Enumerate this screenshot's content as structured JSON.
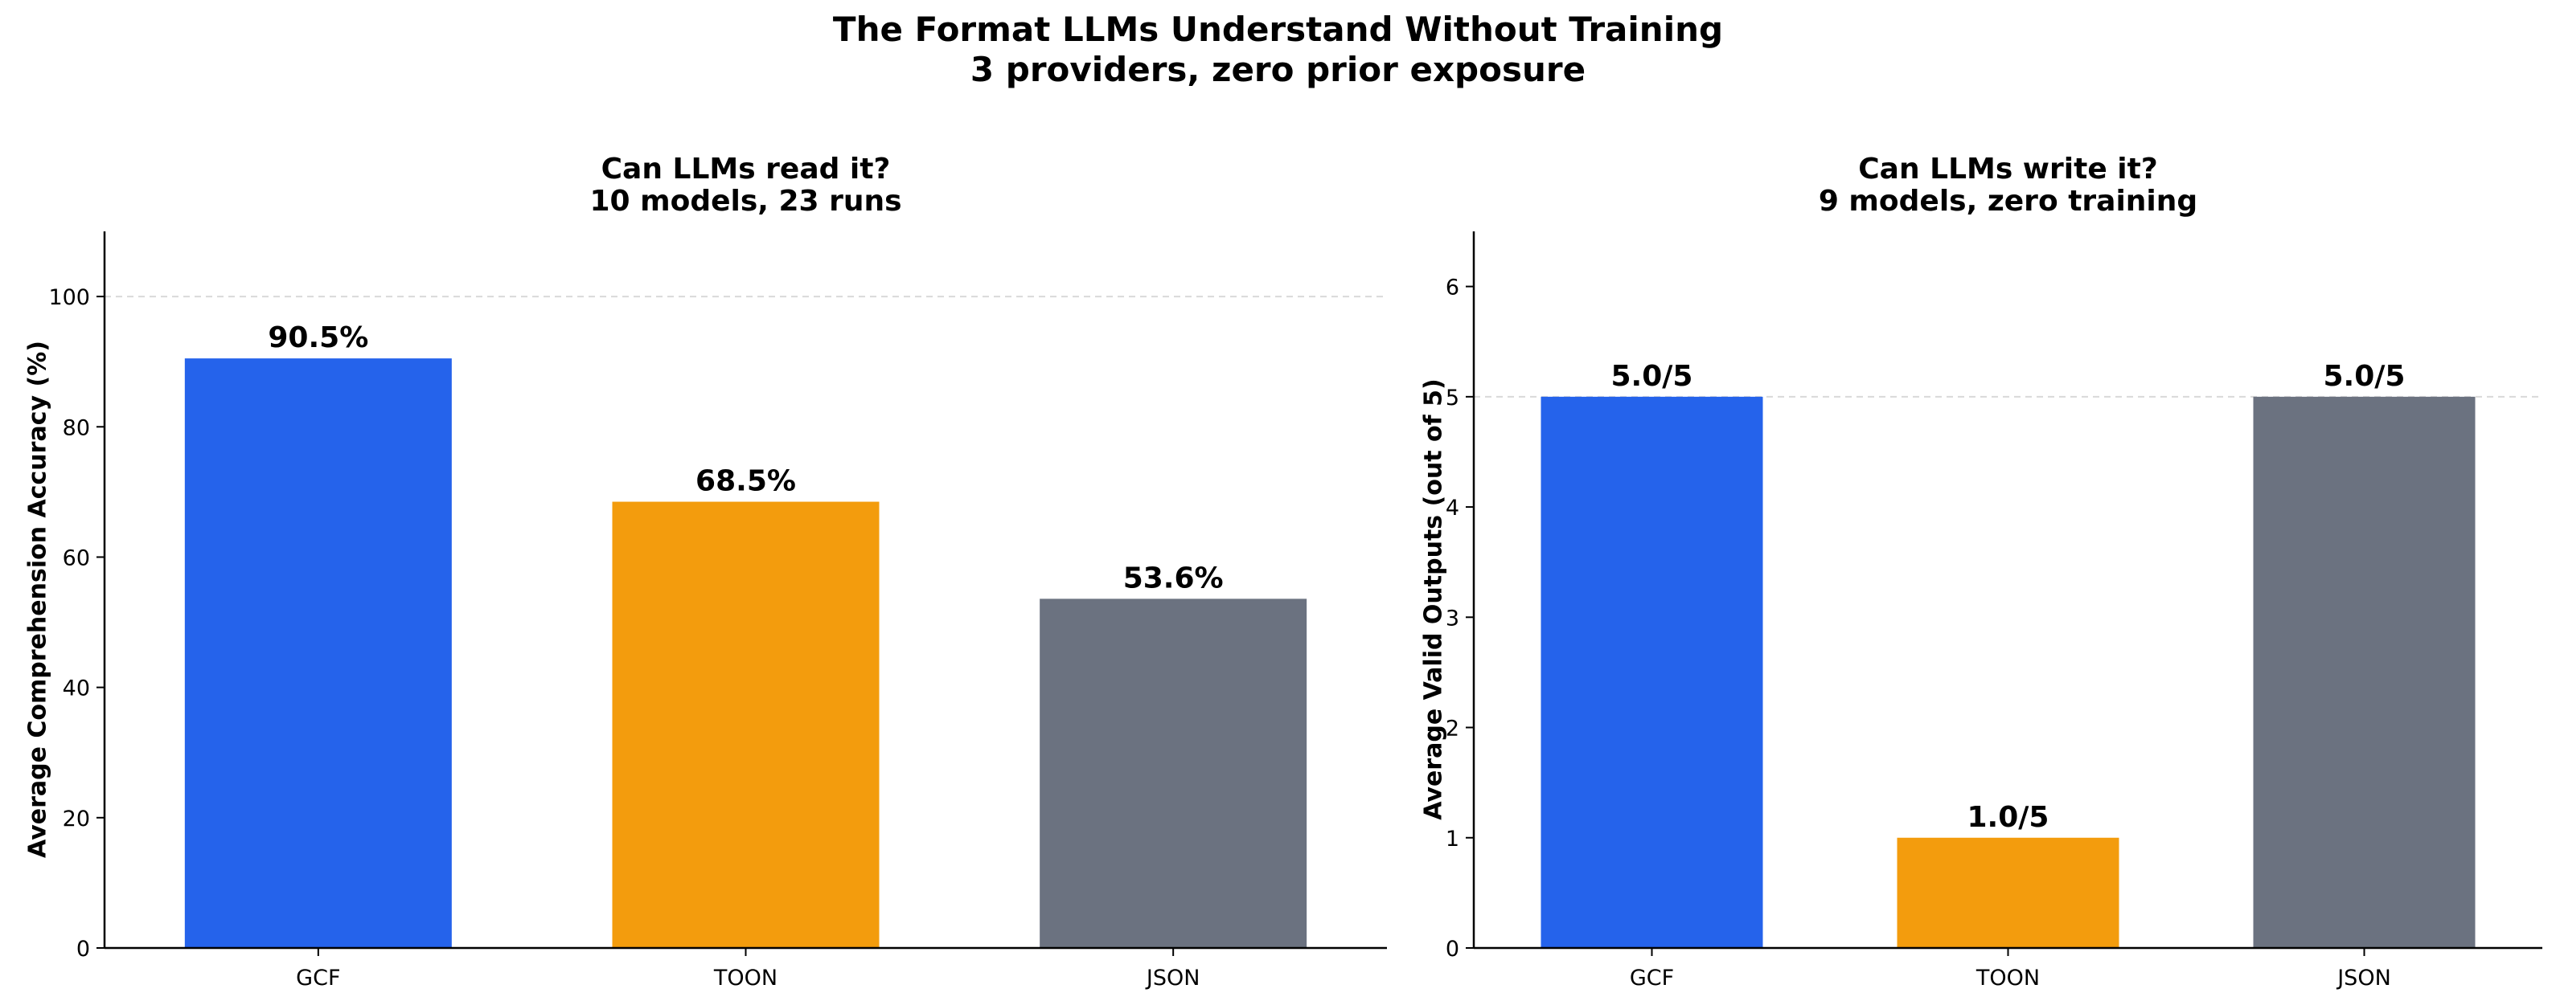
{
  "figure": {
    "title_line1": "The Format LLMs Understand Without Training",
    "title_line2": "3 providers, zero prior exposure"
  },
  "chart_data": [
    {
      "type": "bar",
      "title_line1": "Can LLMs read it?",
      "title_line2": "10 models, 23 runs",
      "xlabel": "",
      "ylabel": "Average Comprehension Accuracy (%)",
      "categories": [
        "GCF",
        "TOON",
        "JSON"
      ],
      "values": [
        90.5,
        68.5,
        53.6
      ],
      "data_labels": [
        "90.5%",
        "68.5%",
        "53.6%"
      ],
      "colors": [
        "#2563eb",
        "#f39c0d",
        "#6b7280"
      ],
      "ylim": [
        0,
        110
      ],
      "yticks": [
        0,
        20,
        40,
        60,
        80,
        100
      ],
      "reference_line": 100,
      "grid": false,
      "legend": "none"
    },
    {
      "type": "bar",
      "title_line1": "Can LLMs write it?",
      "title_line2": "9 models, zero training",
      "xlabel": "",
      "ylabel": "Average Valid Outputs (out of 5)",
      "categories": [
        "GCF",
        "TOON",
        "JSON"
      ],
      "values": [
        5.0,
        1.0,
        5.0
      ],
      "data_labels": [
        "5.0/5",
        "1.0/5",
        "5.0/5"
      ],
      "colors": [
        "#2563eb",
        "#f39c0d",
        "#6b7280"
      ],
      "ylim": [
        0,
        6.5
      ],
      "yticks": [
        0,
        1,
        2,
        3,
        4,
        5,
        6
      ],
      "reference_line": 5,
      "grid": false,
      "legend": "none"
    }
  ]
}
